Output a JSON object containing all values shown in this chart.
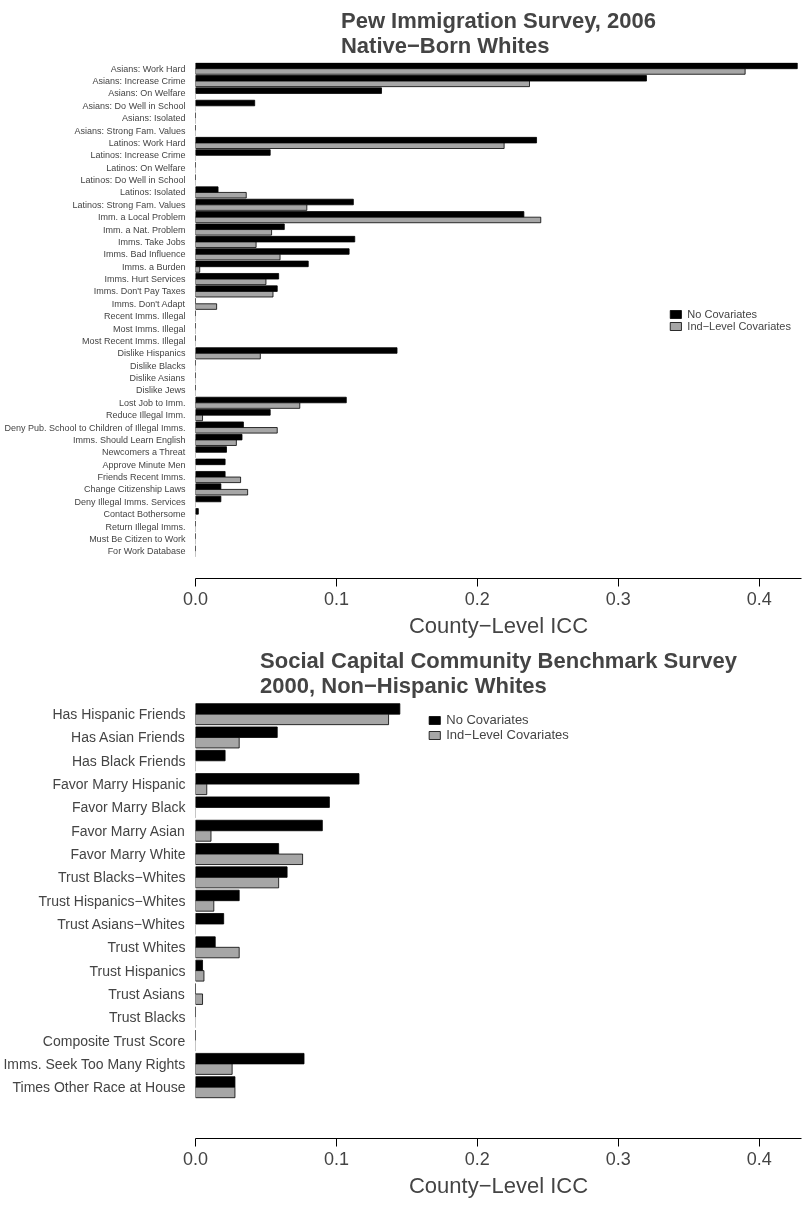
{
  "chart_data": [
    {
      "type": "bar",
      "orientation": "horizontal",
      "title": "Pew Immigration Survey, 2006\nNative−Born Whites",
      "xlabel": "County−Level ICC",
      "categories": [
        "Asians: Work Hard",
        "Asians: Increase Crime",
        "Asians: On Welfare",
        "Asians: Do Well in School",
        "Asians: Isolated",
        "Asians: Strong Fam. Values",
        "Latinos: Work Hard",
        "Latinos: Increase Crime",
        "Latinos: On Welfare",
        "Latinos: Do Well in School",
        "Latinos: Isolated",
        "Latinos: Strong Fam. Values",
        "Imm. a Local Problem",
        "Imm. a Nat. Problem",
        "Imms. Take Jobs",
        "Imms. Bad Influence",
        "Imms. a Burden",
        "Imms. Hurt Services",
        "Imms. Don't Pay Taxes",
        "Imms. Don't Adapt",
        "Recent Imms. Illegal",
        "Most Imms. Illegal",
        "Most Recent Imms. Illegal",
        "Dislike Hispanics",
        "Dislike Blacks",
        "Dislike Asians",
        "Dislike Jews",
        "Lost Job to Imm.",
        "Reduce Illegal Imm.",
        "Deny Pub. School to Children of Illegal Imms.",
        "Imms. Should Learn English",
        "Newcomers a Threat",
        "Approve Minute Men",
        "Friends Recent Imms.",
        "Change Citizenship Laws",
        "Deny Illegal Imms. Services",
        "Contact Bothersome",
        "Return Illegal Imms.",
        "Must Be Citizen to Work",
        "For Work Database"
      ],
      "series": [
        {
          "name": "No Covariates",
          "color": "#000000",
          "values": [
            0.427,
            0.32,
            0.132,
            0.042,
            0,
            0,
            0.242,
            0.053,
            0,
            0,
            0.016,
            0.112,
            0.233,
            0.063,
            0.113,
            0.109,
            0.08,
            0.059,
            0.058,
            0,
            0,
            0,
            0,
            0.143,
            0,
            0,
            0,
            0.107,
            0.053,
            0.034,
            0.033,
            0.022,
            0.021,
            0.021,
            0.018,
            0.018,
            0.002,
            0,
            0,
            0
          ]
        },
        {
          "name": "Ind−Level Covariates",
          "color": "#a6a6a6",
          "values": [
            0.39,
            0.237,
            0,
            0,
            0,
            0,
            0.219,
            0,
            0,
            0,
            0.036,
            0.079,
            0.245,
            0.054,
            0.043,
            0.06,
            0.003,
            0.05,
            0.055,
            0.015,
            0,
            0,
            0,
            0.046,
            0,
            0,
            0,
            0.074,
            0.005,
            0.058,
            0.029,
            0,
            0,
            0.032,
            0.037,
            0,
            0,
            0,
            0,
            0
          ]
        }
      ],
      "xlim": [
        0,
        0.43
      ],
      "xticks": [
        {
          "value": 0,
          "label": "0.0"
        },
        0.1,
        0.2,
        0.3,
        0.4
      ],
      "grid": false,
      "legend": "right"
    },
    {
      "type": "bar",
      "orientation": "horizontal",
      "title": "Social Capital Community Benchmark Survey\n2000, Non−Hispanic Whites",
      "xlabel": "County−Level ICC",
      "categories": [
        "Has Hispanic Friends",
        "Has Asian Friends",
        "Has Black Friends",
        "Favor Marry Hispanic",
        "Favor Marry Black",
        "Favor Marry Asian",
        "Favor Marry White",
        "Trust Blacks−Whites",
        "Trust Hispanics−Whites",
        "Trust Asians−Whites",
        "Trust Whites",
        "Trust Hispanics",
        "Trust Asians",
        "Trust Blacks",
        "Composite Trust Score",
        "Imms. Seek Too Many Rights",
        "Times Other Race at House"
      ],
      "series": [
        {
          "name": "No Covariates",
          "color": "#000000",
          "values": [
            0.145,
            0.058,
            0.021,
            0.116,
            0.095,
            0.09,
            0.059,
            0.065,
            0.031,
            0.02,
            0.014,
            0.005,
            0,
            0,
            0,
            0.077,
            0.028
          ]
        },
        {
          "name": "Ind−Level Covariates",
          "color": "#a6a6a6",
          "values": [
            0.137,
            0.031,
            0,
            0.008,
            0,
            0.011,
            0.076,
            0.059,
            0.013,
            0,
            0.031,
            0.006,
            0.005,
            0,
            0,
            0.026,
            0.028
          ]
        }
      ],
      "xlim": [
        0,
        0.43
      ],
      "xticks": [
        {
          "value": 0,
          "label": "0.0"
        },
        0.1,
        0.2,
        0.3,
        0.4
      ],
      "grid": false,
      "legend": "top"
    }
  ]
}
